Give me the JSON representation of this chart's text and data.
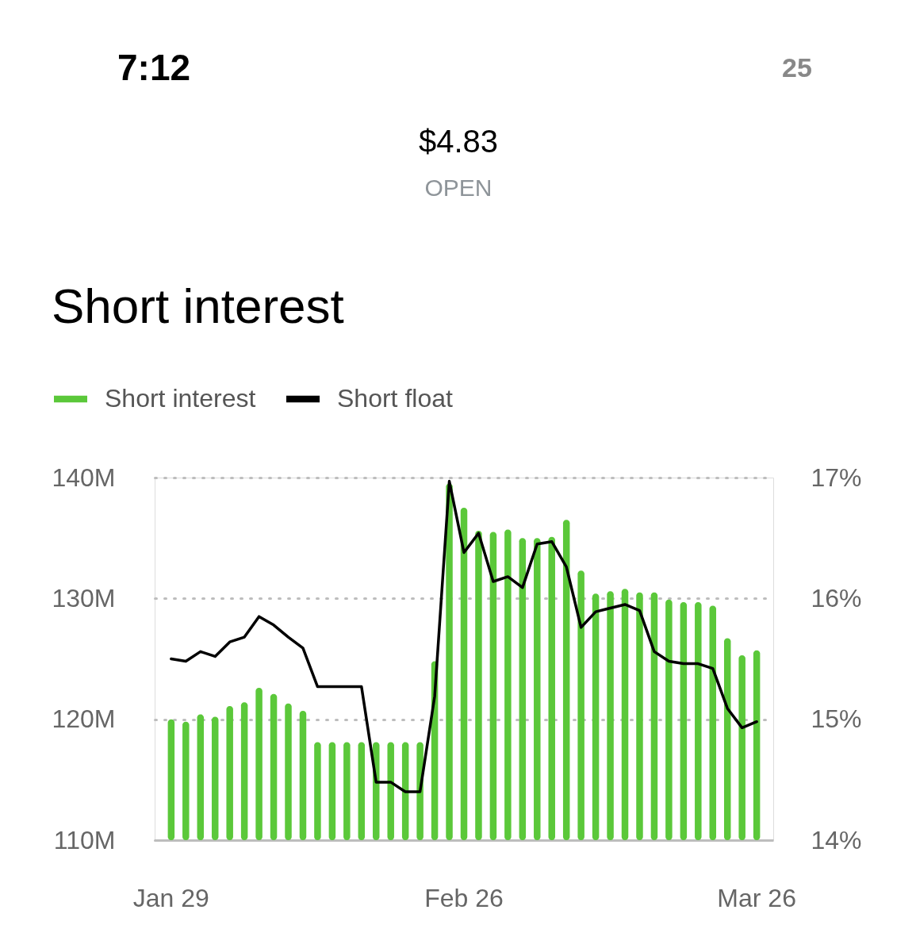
{
  "chart_data": {
    "type": "bar",
    "title": "Short interest",
    "annotations": [
      "7:12",
      "25",
      "$4.83",
      "OPEN"
    ],
    "categories": [
      "Jan 29",
      null,
      null,
      null,
      null,
      null,
      null,
      null,
      null,
      null,
      null,
      null,
      null,
      null,
      null,
      null,
      null,
      null,
      null,
      null,
      "Feb 26",
      null,
      null,
      null,
      null,
      null,
      null,
      null,
      null,
      null,
      null,
      null,
      null,
      null,
      null,
      null,
      null,
      null,
      null,
      null,
      "Mar 26"
    ],
    "series": [
      {
        "name": "Short interest",
        "color": "#5bc83a",
        "values": [
          120.0,
          119.8,
          120.4,
          120.2,
          121.1,
          121.4,
          122.6,
          122.1,
          121.3,
          120.7,
          118.1,
          118.1,
          118.1,
          118.1,
          118.1,
          118.1,
          118.1,
          118.1,
          124.8,
          139.5,
          137.5,
          135.6,
          135.5,
          135.7,
          135.0,
          135.0,
          135.1,
          136.5,
          132.3,
          130.4,
          130.6,
          130.8,
          130.5,
          130.5,
          129.9,
          129.7,
          129.7,
          129.4,
          126.7,
          125.3,
          125.7
        ]
      },
      {
        "name": "Short float",
        "type": "line",
        "axis": "y2",
        "color": "#000000",
        "values": [
          15.5,
          15.48,
          15.56,
          15.52,
          15.64,
          15.68,
          15.85,
          15.78,
          15.68,
          15.59,
          15.27,
          15.27,
          15.27,
          15.27,
          14.48,
          14.48,
          14.4,
          14.4,
          15.19,
          16.97,
          16.38,
          16.54,
          16.14,
          16.18,
          16.09,
          16.45,
          16.47,
          16.26,
          15.76,
          15.89,
          15.92,
          15.95,
          15.9,
          15.56,
          15.48,
          15.46,
          15.46,
          15.42,
          15.09,
          14.93,
          14.98
        ]
      }
    ],
    "ylim": [
      110,
      140
    ],
    "yticks": [
      {
        "value": 110,
        "label": "110M"
      },
      {
        "value": 120,
        "label": "120M"
      },
      {
        "value": 130,
        "label": "130M"
      },
      {
        "value": 140,
        "label": "140M"
      }
    ],
    "y2lim": [
      14,
      17
    ],
    "y2ticks": [
      {
        "value": 14,
        "label": "14%"
      },
      {
        "value": 15,
        "label": "15%"
      },
      {
        "value": 16,
        "label": "16%"
      },
      {
        "value": 17,
        "label": "17%"
      }
    ],
    "grid": "y",
    "legend": "top left",
    "line_style": "solid"
  }
}
